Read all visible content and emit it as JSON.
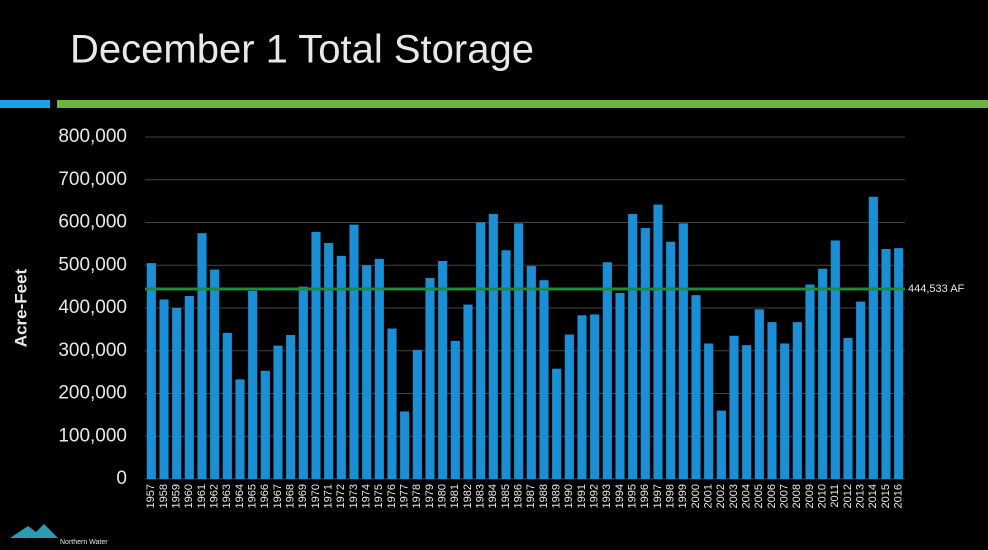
{
  "chart_data": {
    "type": "bar",
    "title": "December 1 Total Storage",
    "y_label": "Acre-Feet",
    "categories": [
      "1957",
      "1958",
      "1959",
      "1960",
      "1961",
      "1962",
      "1963",
      "1964",
      "1965",
      "1966",
      "1967",
      "1968",
      "1969",
      "1970",
      "1971",
      "1972",
      "1973",
      "1974",
      "1975",
      "1976",
      "1977",
      "1978",
      "1979",
      "1980",
      "1981",
      "1982",
      "1983",
      "1984",
      "1985",
      "1986",
      "1987",
      "1988",
      "1989",
      "1990",
      "1991",
      "1992",
      "1993",
      "1994",
      "1995",
      "1996",
      "1997",
      "1998",
      "1999",
      "2000",
      "2001",
      "2002",
      "2003",
      "2004",
      "2005",
      "2006",
      "2007",
      "2008",
      "2009",
      "2010",
      "2011",
      "2012",
      "2013",
      "2014",
      "2015",
      "2016"
    ],
    "values": [
      505000,
      420000,
      400000,
      428000,
      575000,
      490000,
      342000,
      233000,
      440000,
      253000,
      312000,
      337000,
      450000,
      578000,
      552000,
      522000,
      595000,
      500000,
      515000,
      352000,
      158000,
      302000,
      470000,
      510000,
      323000,
      408000,
      600000,
      620000,
      535000,
      598000,
      498000,
      465000,
      258000,
      338000,
      383000,
      385000,
      507000,
      435000,
      620000,
      587000,
      642000,
      555000,
      598000,
      430000,
      317000,
      160000,
      335000,
      313000,
      397000,
      367000,
      317000,
      367000,
      455000,
      492000,
      558000,
      330000,
      415000,
      660000,
      538000,
      540000
    ],
    "color": "#1b8fd6",
    "ylim": [
      0,
      800000
    ],
    "yticks": [
      0,
      {
        "value": 100000,
        "label": "100,000"
      },
      {
        "value": 200000,
        "label": "200,000"
      },
      {
        "value": 300000,
        "label": "300,000"
      },
      {
        "value": 400000,
        "label": "400,000"
      },
      {
        "value": 500000,
        "label": "500,000"
      },
      {
        "value": 600000,
        "label": "600,000"
      },
      {
        "value": 700000,
        "label": "700,000"
      },
      {
        "value": 800000,
        "label": "800,000"
      }
    ],
    "grid": true,
    "reference_line": {
      "value": 444533,
      "label": "444,533 AF",
      "color": "#1e8a3a"
    }
  },
  "logo": "Northern Water"
}
